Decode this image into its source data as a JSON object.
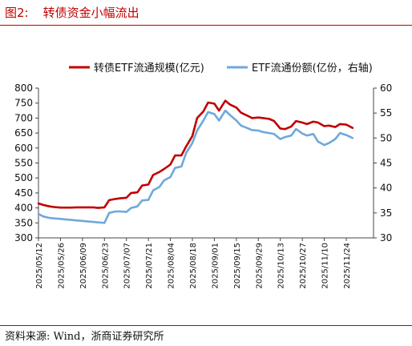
{
  "figure": {
    "label": "图2:",
    "title": "转债资金小幅流出",
    "source": "资料来源:  Wind，浙商证券研究所"
  },
  "chart_data": {
    "type": "line",
    "legend_position": "top",
    "grid": false,
    "x_ticks": [
      "2025/05/12",
      "2025/05/26",
      "2025/06/09",
      "2025/06/23",
      "2025/07/07",
      "2025/07/21",
      "2025/08/04",
      "2025/08/18",
      "2025/09/01",
      "2025/09/15",
      "2025/09/29",
      "2025/10/13",
      "2025/10/27",
      "2025/11/10",
      "2025/11/24"
    ],
    "y_left": {
      "ticks": [
        300,
        350,
        400,
        450,
        500,
        550,
        600,
        650,
        700,
        750,
        800
      ],
      "range": [
        300,
        800
      ]
    },
    "y_right": {
      "ticks": [
        30,
        35,
        40,
        45,
        50,
        55,
        60
      ],
      "range": [
        30,
        60
      ]
    },
    "series": [
      {
        "name": "转债ETF流通规模(亿元)",
        "axis": "left",
        "color": "#c00000",
        "points": [
          [
            "2025/05/12",
            415
          ],
          [
            "2025/05/15",
            410
          ],
          [
            "2025/05/19",
            405
          ],
          [
            "2025/05/22",
            403
          ],
          [
            "2025/05/26",
            401
          ],
          [
            "2025/05/29",
            401
          ],
          [
            "2025/06/02",
            401
          ],
          [
            "2025/06/05",
            402
          ],
          [
            "2025/06/09",
            402
          ],
          [
            "2025/06/12",
            402
          ],
          [
            "2025/06/16",
            402
          ],
          [
            "2025/06/19",
            400
          ],
          [
            "2025/06/23",
            402
          ],
          [
            "2025/06/26",
            426
          ],
          [
            "2025/06/30",
            430
          ],
          [
            "2025/07/03",
            432
          ],
          [
            "2025/07/07",
            434
          ],
          [
            "2025/07/10",
            450
          ],
          [
            "2025/07/14",
            452
          ],
          [
            "2025/07/17",
            475
          ],
          [
            "2025/07/21",
            478
          ],
          [
            "2025/07/24",
            510
          ],
          [
            "2025/07/28",
            520
          ],
          [
            "2025/07/31",
            530
          ],
          [
            "2025/08/04",
            545
          ],
          [
            "2025/08/07",
            575
          ],
          [
            "2025/08/11",
            575
          ],
          [
            "2025/08/14",
            605
          ],
          [
            "2025/08/18",
            640
          ],
          [
            "2025/08/21",
            700
          ],
          [
            "2025/08/25",
            722
          ],
          [
            "2025/08/28",
            752
          ],
          [
            "2025/09/01",
            748
          ],
          [
            "2025/09/04",
            725
          ],
          [
            "2025/09/08",
            758
          ],
          [
            "2025/09/11",
            745
          ],
          [
            "2025/09/15",
            735
          ],
          [
            "2025/09/18",
            718
          ],
          [
            "2025/09/22",
            708
          ],
          [
            "2025/09/25",
            700
          ],
          [
            "2025/09/29",
            702
          ],
          [
            "2025/10/02",
            700
          ],
          [
            "2025/10/06",
            697
          ],
          [
            "2025/10/09",
            690
          ],
          [
            "2025/10/13",
            665
          ],
          [
            "2025/10/16",
            663
          ],
          [
            "2025/10/20",
            672
          ],
          [
            "2025/10/23",
            690
          ],
          [
            "2025/10/27",
            685
          ],
          [
            "2025/10/30",
            680
          ],
          [
            "2025/11/03",
            688
          ],
          [
            "2025/11/06",
            685
          ],
          [
            "2025/11/10",
            673
          ],
          [
            "2025/11/13",
            675
          ],
          [
            "2025/11/17",
            670
          ],
          [
            "2025/11/20",
            680
          ],
          [
            "2025/11/24",
            678
          ],
          [
            "2025/11/28",
            667
          ]
        ]
      },
      {
        "name": "ETF流通份额(亿份，右轴)",
        "axis": "right",
        "color": "#6fa8dc",
        "points": [
          [
            "2025/05/12",
            34.8
          ],
          [
            "2025/05/15",
            34.3
          ],
          [
            "2025/05/19",
            34.0
          ],
          [
            "2025/05/22",
            33.9
          ],
          [
            "2025/05/26",
            33.8
          ],
          [
            "2025/05/29",
            33.7
          ],
          [
            "2025/06/02",
            33.6
          ],
          [
            "2025/06/05",
            33.5
          ],
          [
            "2025/06/09",
            33.4
          ],
          [
            "2025/06/12",
            33.3
          ],
          [
            "2025/06/16",
            33.2
          ],
          [
            "2025/06/19",
            33.1
          ],
          [
            "2025/06/23",
            33.0
          ],
          [
            "2025/06/26",
            35.0
          ],
          [
            "2025/06/30",
            35.3
          ],
          [
            "2025/07/03",
            35.3
          ],
          [
            "2025/07/07",
            35.2
          ],
          [
            "2025/07/10",
            36.0
          ],
          [
            "2025/07/14",
            36.3
          ],
          [
            "2025/07/17",
            37.5
          ],
          [
            "2025/07/21",
            37.6
          ],
          [
            "2025/07/24",
            39.5
          ],
          [
            "2025/07/28",
            40.2
          ],
          [
            "2025/07/31",
            41.5
          ],
          [
            "2025/08/04",
            42.2
          ],
          [
            "2025/08/07",
            44.0
          ],
          [
            "2025/08/11",
            44.3
          ],
          [
            "2025/08/14",
            47.0
          ],
          [
            "2025/08/18",
            49.0
          ],
          [
            "2025/08/21",
            51.5
          ],
          [
            "2025/08/25",
            53.5
          ],
          [
            "2025/08/28",
            55.2
          ],
          [
            "2025/09/01",
            54.8
          ],
          [
            "2025/09/04",
            53.5
          ],
          [
            "2025/09/08",
            55.5
          ],
          [
            "2025/09/11",
            54.6
          ],
          [
            "2025/09/15",
            53.5
          ],
          [
            "2025/09/18",
            52.5
          ],
          [
            "2025/09/22",
            52.0
          ],
          [
            "2025/09/25",
            51.6
          ],
          [
            "2025/09/29",
            51.5
          ],
          [
            "2025/10/02",
            51.2
          ],
          [
            "2025/10/06",
            51.0
          ],
          [
            "2025/10/09",
            50.8
          ],
          [
            "2025/10/13",
            49.8
          ],
          [
            "2025/10/16",
            50.2
          ],
          [
            "2025/10/20",
            50.5
          ],
          [
            "2025/10/23",
            51.8
          ],
          [
            "2025/10/27",
            50.9
          ],
          [
            "2025/10/30",
            50.5
          ],
          [
            "2025/11/03",
            50.8
          ],
          [
            "2025/11/06",
            49.3
          ],
          [
            "2025/11/10",
            48.6
          ],
          [
            "2025/11/13",
            49.0
          ],
          [
            "2025/11/17",
            49.8
          ],
          [
            "2025/11/20",
            51.0
          ],
          [
            "2025/11/24",
            50.6
          ],
          [
            "2025/11/28",
            50.0
          ]
        ]
      }
    ]
  }
}
